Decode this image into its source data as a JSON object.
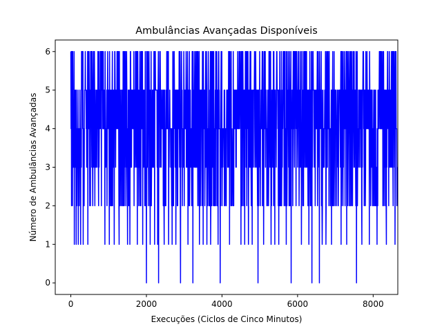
{
  "chart_data": {
    "type": "line",
    "title": "Ambulâncias Avançadas Disponíveis",
    "xlabel": "Execuções (Ciclos de Cinco Minutos)",
    "ylabel": "Número de Ambulâncias Avançadas",
    "xlim": [
      -412,
      8652
    ],
    "ylim": [
      -0.3,
      6.3
    ],
    "xticks": [
      0,
      2000,
      4000,
      6000,
      8000
    ],
    "yticks": [
      0,
      1,
      2,
      3,
      4,
      5,
      6
    ],
    "xtick_labels": [
      "0",
      "2000",
      "4000",
      "6000",
      "8000"
    ],
    "ytick_labels": [
      "0",
      "1",
      "2",
      "3",
      "4",
      "5",
      "6"
    ],
    "grid": false,
    "series": [
      {
        "color": "#0000ff",
        "x_start": 0,
        "x_end": 8640,
        "typical_range": [
          2,
          6
        ],
        "dips_to_1_at": [
          90,
          140,
          200,
          260,
          330,
          450,
          900,
          1020,
          1150,
          1280,
          1500,
          1560,
          1760,
          1900,
          2100,
          2220,
          2300,
          2470,
          2590,
          2680,
          2780,
          3100,
          3400,
          3500,
          3600,
          3700,
          3900,
          4200,
          4500,
          4600,
          4700,
          4800,
          5100,
          5300,
          5400,
          5500,
          5700,
          6100,
          6300,
          6650,
          6750,
          6900,
          7150,
          7300,
          7700,
          7900,
          8100,
          8350,
          8580
        ],
        "dips_to_0_at": [
          2000,
          2320,
          2900,
          3230,
          3950,
          4950,
          5830,
          6380,
          6580,
          7560
        ]
      }
    ]
  }
}
